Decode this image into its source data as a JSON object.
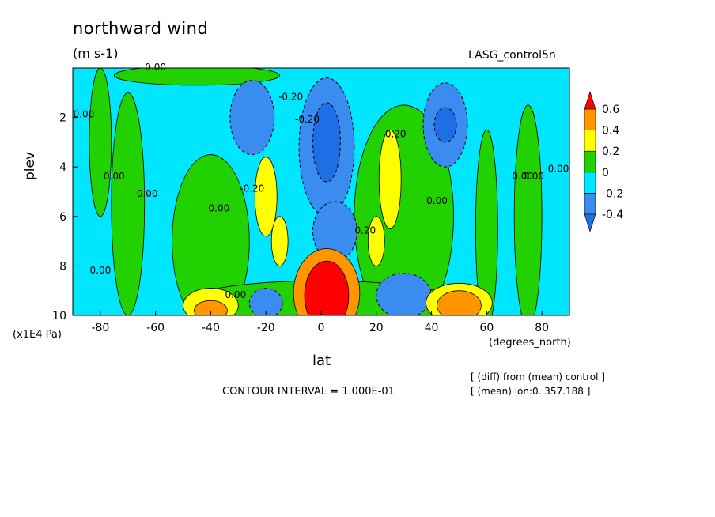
{
  "title": "northward wind",
  "units": "(m s-1)",
  "dataset": "LASG_control5n",
  "ylabel": "plev",
  "yunits": "(x1E4 Pa)",
  "xlabel": "lat",
  "xunits": "(degrees_north)",
  "contour_interval": "CONTOUR INTERVAL = 1.000E-01",
  "notes": [
    "[ (diff) from (mean) control ]",
    "[ (mean) lon:0..357.188 ]"
  ],
  "colors": {
    "below_-0.4": "#1e6ee6",
    "-0.4_-0.2": "#3a8cf0",
    "-0.2_0": "#00e6ff",
    "0_0.2": "#22d200",
    "0.2_0.4": "#ffff00",
    "0.4_0.6": "#ff9600",
    "above_0.6": "#ff0000"
  },
  "chart_data": {
    "type": "heatmap",
    "title": "northward wind",
    "xlabel": "lat",
    "ylabel": "plev",
    "xlim": [
      -90,
      90
    ],
    "ylim": [
      10,
      0
    ],
    "x_ticks": [
      -80,
      -60,
      -40,
      -20,
      0,
      20,
      40,
      60,
      80
    ],
    "y_ticks": [
      2,
      4,
      6,
      8,
      10
    ],
    "x_tick_labels": [
      "-80",
      "-60",
      "-40",
      "-20",
      "0",
      "20",
      "40",
      "60",
      "80"
    ],
    "y_tick_labels": [
      "2",
      "4",
      "6",
      "8",
      "10"
    ],
    "colorbar": {
      "levels": [
        -0.4,
        -0.2,
        0,
        0.2,
        0.4,
        0.6
      ],
      "labels": [
        "0.6",
        "0.4",
        "0.2",
        "0",
        "-0.2",
        "-0.4"
      ],
      "colors": [
        "#1e6ee6",
        "#3a8cf0",
        "#00e6ff",
        "#22d200",
        "#ffff00",
        "#ff9600",
        "#ff0000"
      ]
    },
    "contour_labels": [
      {
        "text": "0.00",
        "lat": -60,
        "plev": 0.1
      },
      {
        "text": "-0.20",
        "lat": -11,
        "plev": 1.3
      },
      {
        "text": "0.00",
        "lat": -86,
        "plev": 2.0
      },
      {
        "text": "0.00",
        "lat": -75,
        "plev": 4.5
      },
      {
        "text": "0.00",
        "lat": -63,
        "plev": 5.2
      },
      {
        "text": "0.00",
        "lat": -37,
        "plev": 5.8
      },
      {
        "text": "-0.20",
        "lat": -25,
        "plev": 5.0
      },
      {
        "text": "-0.20",
        "lat": -5,
        "plev": 2.2
      },
      {
        "text": "0.20",
        "lat": 27,
        "plev": 2.8
      },
      {
        "text": "0.20",
        "lat": 16,
        "plev": 6.7
      },
      {
        "text": "0.00",
        "lat": 42,
        "plev": 5.5
      },
      {
        "text": "0.00",
        "lat": 73,
        "plev": 4.5
      },
      {
        "text": "0.00",
        "lat": 77,
        "plev": 4.5
      },
      {
        "text": "0.00",
        "lat": 86,
        "plev": 4.2
      },
      {
        "text": "0.00",
        "lat": -80,
        "plev": 8.3
      },
      {
        "text": "0.00",
        "lat": -31,
        "plev": 9.3
      }
    ],
    "features": [
      {
        "value": -0.6,
        "lat": 2,
        "plev": 3.2,
        "note": "strong negative core upper troposphere"
      },
      {
        "value": 0.8,
        "lat": 2,
        "plev": 9.1,
        "note": "strong positive core near surface"
      },
      {
        "value": -0.4,
        "lat": 45,
        "plev": 2.3
      },
      {
        "value": -0.4,
        "lat": -25,
        "plev": 2.0
      },
      {
        "value": 0.3,
        "lat": 25,
        "plev": 4.5
      },
      {
        "value": 0.3,
        "lat": -20,
        "plev": 5.0
      },
      {
        "value": 0.3,
        "lat": -15,
        "plev": 7.0
      },
      {
        "value": 0.3,
        "lat": 20,
        "plev": 7.0
      },
      {
        "value": -0.4,
        "lat": 30,
        "plev": 9.2
      },
      {
        "value": -0.3,
        "lat": -20,
        "plev": 9.6
      },
      {
        "value": 0.5,
        "lat": 50,
        "plev": 9.5
      },
      {
        "value": 0.4,
        "lat": -40,
        "plev": 9.5
      }
    ]
  }
}
